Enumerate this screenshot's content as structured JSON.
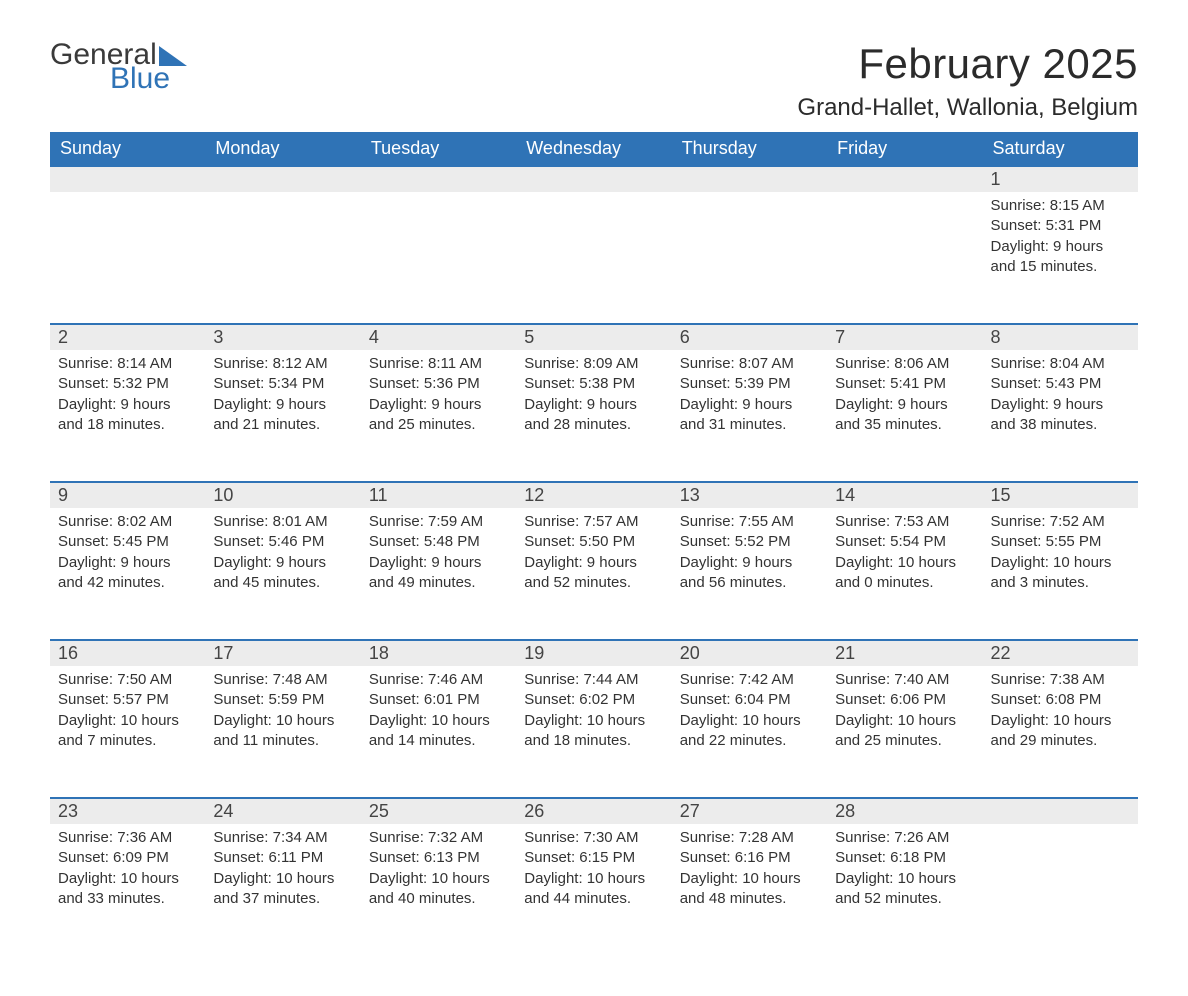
{
  "logo": {
    "part1": "General",
    "part2": "Blue"
  },
  "title": "February 2025",
  "location": "Grand-Hallet, Wallonia, Belgium",
  "colors": {
    "accent": "#2f73b6",
    "row_bg": "#ececec",
    "page_bg": "#ffffff",
    "text": "#333333"
  },
  "weekdays": [
    "Sunday",
    "Monday",
    "Tuesday",
    "Wednesday",
    "Thursday",
    "Friday",
    "Saturday"
  ],
  "first_weekday_index": 6,
  "days": [
    {
      "n": 1,
      "sunrise": "8:15 AM",
      "sunset": "5:31 PM",
      "daylight": "9 hours and 15 minutes."
    },
    {
      "n": 2,
      "sunrise": "8:14 AM",
      "sunset": "5:32 PM",
      "daylight": "9 hours and 18 minutes."
    },
    {
      "n": 3,
      "sunrise": "8:12 AM",
      "sunset": "5:34 PM",
      "daylight": "9 hours and 21 minutes."
    },
    {
      "n": 4,
      "sunrise": "8:11 AM",
      "sunset": "5:36 PM",
      "daylight": "9 hours and 25 minutes."
    },
    {
      "n": 5,
      "sunrise": "8:09 AM",
      "sunset": "5:38 PM",
      "daylight": "9 hours and 28 minutes."
    },
    {
      "n": 6,
      "sunrise": "8:07 AM",
      "sunset": "5:39 PM",
      "daylight": "9 hours and 31 minutes."
    },
    {
      "n": 7,
      "sunrise": "8:06 AM",
      "sunset": "5:41 PM",
      "daylight": "9 hours and 35 minutes."
    },
    {
      "n": 8,
      "sunrise": "8:04 AM",
      "sunset": "5:43 PM",
      "daylight": "9 hours and 38 minutes."
    },
    {
      "n": 9,
      "sunrise": "8:02 AM",
      "sunset": "5:45 PM",
      "daylight": "9 hours and 42 minutes."
    },
    {
      "n": 10,
      "sunrise": "8:01 AM",
      "sunset": "5:46 PM",
      "daylight": "9 hours and 45 minutes."
    },
    {
      "n": 11,
      "sunrise": "7:59 AM",
      "sunset": "5:48 PM",
      "daylight": "9 hours and 49 minutes."
    },
    {
      "n": 12,
      "sunrise": "7:57 AM",
      "sunset": "5:50 PM",
      "daylight": "9 hours and 52 minutes."
    },
    {
      "n": 13,
      "sunrise": "7:55 AM",
      "sunset": "5:52 PM",
      "daylight": "9 hours and 56 minutes."
    },
    {
      "n": 14,
      "sunrise": "7:53 AM",
      "sunset": "5:54 PM",
      "daylight": "10 hours and 0 minutes."
    },
    {
      "n": 15,
      "sunrise": "7:52 AM",
      "sunset": "5:55 PM",
      "daylight": "10 hours and 3 minutes."
    },
    {
      "n": 16,
      "sunrise": "7:50 AM",
      "sunset": "5:57 PM",
      "daylight": "10 hours and 7 minutes."
    },
    {
      "n": 17,
      "sunrise": "7:48 AM",
      "sunset": "5:59 PM",
      "daylight": "10 hours and 11 minutes."
    },
    {
      "n": 18,
      "sunrise": "7:46 AM",
      "sunset": "6:01 PM",
      "daylight": "10 hours and 14 minutes."
    },
    {
      "n": 19,
      "sunrise": "7:44 AM",
      "sunset": "6:02 PM",
      "daylight": "10 hours and 18 minutes."
    },
    {
      "n": 20,
      "sunrise": "7:42 AM",
      "sunset": "6:04 PM",
      "daylight": "10 hours and 22 minutes."
    },
    {
      "n": 21,
      "sunrise": "7:40 AM",
      "sunset": "6:06 PM",
      "daylight": "10 hours and 25 minutes."
    },
    {
      "n": 22,
      "sunrise": "7:38 AM",
      "sunset": "6:08 PM",
      "daylight": "10 hours and 29 minutes."
    },
    {
      "n": 23,
      "sunrise": "7:36 AM",
      "sunset": "6:09 PM",
      "daylight": "10 hours and 33 minutes."
    },
    {
      "n": 24,
      "sunrise": "7:34 AM",
      "sunset": "6:11 PM",
      "daylight": "10 hours and 37 minutes."
    },
    {
      "n": 25,
      "sunrise": "7:32 AM",
      "sunset": "6:13 PM",
      "daylight": "10 hours and 40 minutes."
    },
    {
      "n": 26,
      "sunrise": "7:30 AM",
      "sunset": "6:15 PM",
      "daylight": "10 hours and 44 minutes."
    },
    {
      "n": 27,
      "sunrise": "7:28 AM",
      "sunset": "6:16 PM",
      "daylight": "10 hours and 48 minutes."
    },
    {
      "n": 28,
      "sunrise": "7:26 AM",
      "sunset": "6:18 PM",
      "daylight": "10 hours and 52 minutes."
    }
  ],
  "labels": {
    "sunrise": "Sunrise:",
    "sunset": "Sunset:",
    "daylight": "Daylight:"
  }
}
